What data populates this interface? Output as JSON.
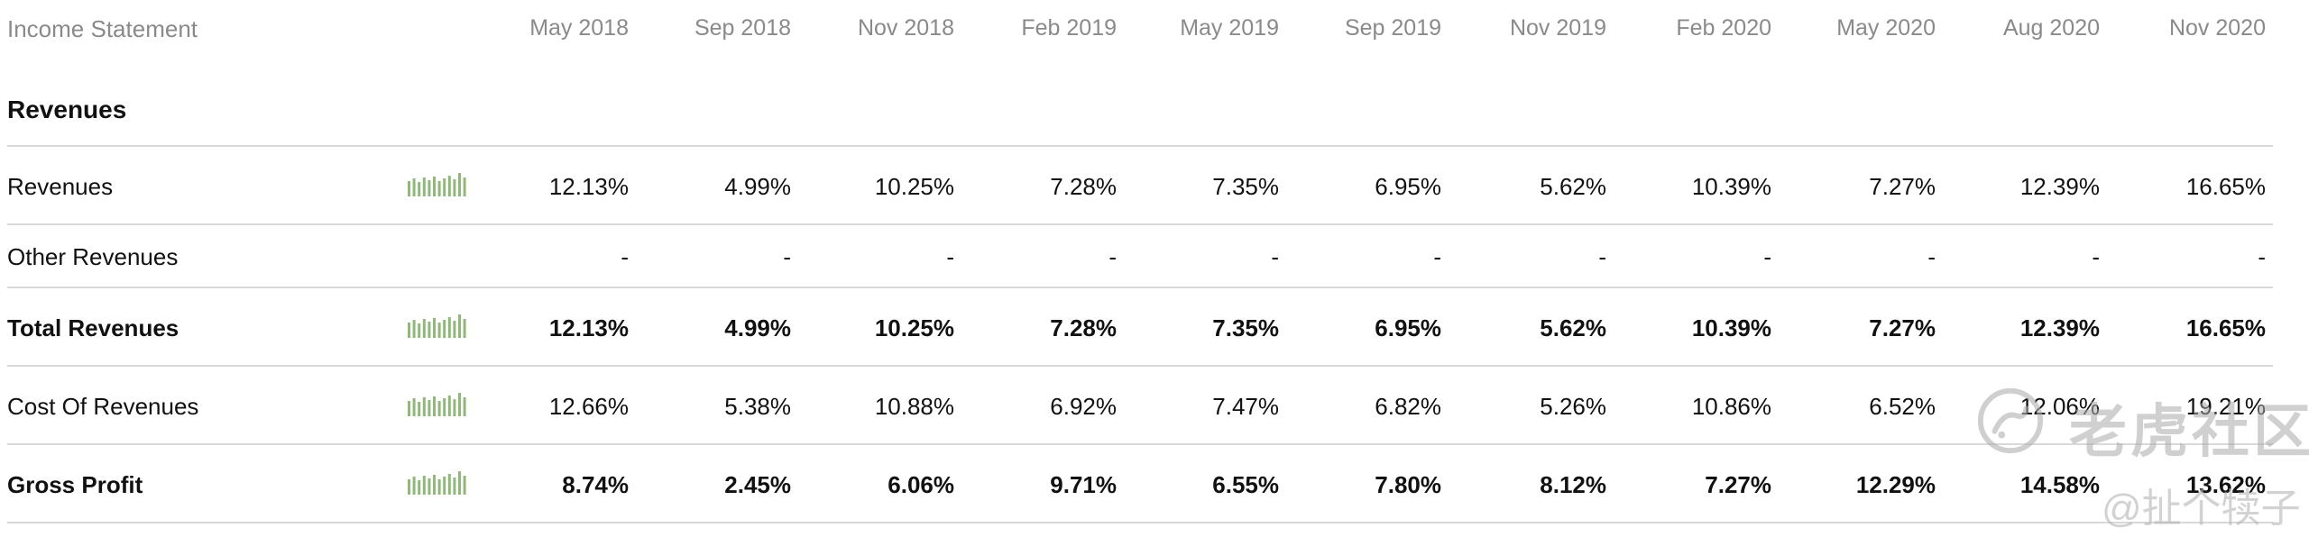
{
  "table": {
    "title": "Income Statement",
    "columns": [
      "May 2018",
      "Sep 2018",
      "Nov 2018",
      "Feb 2019",
      "May 2019",
      "Sep 2019",
      "Nov 2019",
      "Feb 2020",
      "May 2020",
      "Aug 2020",
      "Nov 2020"
    ],
    "section_title": "Revenues",
    "rows": [
      {
        "label": "Revenues",
        "bold": false,
        "sparkline": true,
        "values": [
          "12.13%",
          "4.99%",
          "10.25%",
          "7.28%",
          "7.35%",
          "6.95%",
          "5.62%",
          "10.39%",
          "7.27%",
          "12.39%",
          "16.65%"
        ]
      },
      {
        "label": "Other Revenues",
        "bold": false,
        "sparkline": false,
        "values": [
          "-",
          "-",
          "-",
          "-",
          "-",
          "-",
          "-",
          "-",
          "-",
          "-",
          "-"
        ]
      },
      {
        "label": "Total Revenues",
        "bold": true,
        "sparkline": true,
        "values": [
          "12.13%",
          "4.99%",
          "10.25%",
          "7.28%",
          "7.35%",
          "6.95%",
          "5.62%",
          "10.39%",
          "7.27%",
          "12.39%",
          "16.65%"
        ]
      },
      {
        "label": "Cost Of Revenues",
        "bold": false,
        "sparkline": true,
        "values": [
          "12.66%",
          "5.38%",
          "10.88%",
          "6.92%",
          "7.47%",
          "6.82%",
          "5.26%",
          "10.86%",
          "6.52%",
          "12.06%",
          "19.21%"
        ]
      },
      {
        "label": "Gross Profit",
        "bold": true,
        "sparkline": true,
        "values": [
          "8.74%",
          "2.45%",
          "6.06%",
          "9.71%",
          "6.55%",
          "7.80%",
          "8.12%",
          "7.27%",
          "12.29%",
          "14.58%",
          "13.62%"
        ]
      }
    ]
  },
  "sparkline_color": "#8fb87a",
  "watermark": {
    "line1": "老虎社区",
    "line2": "@扯个犊子"
  }
}
